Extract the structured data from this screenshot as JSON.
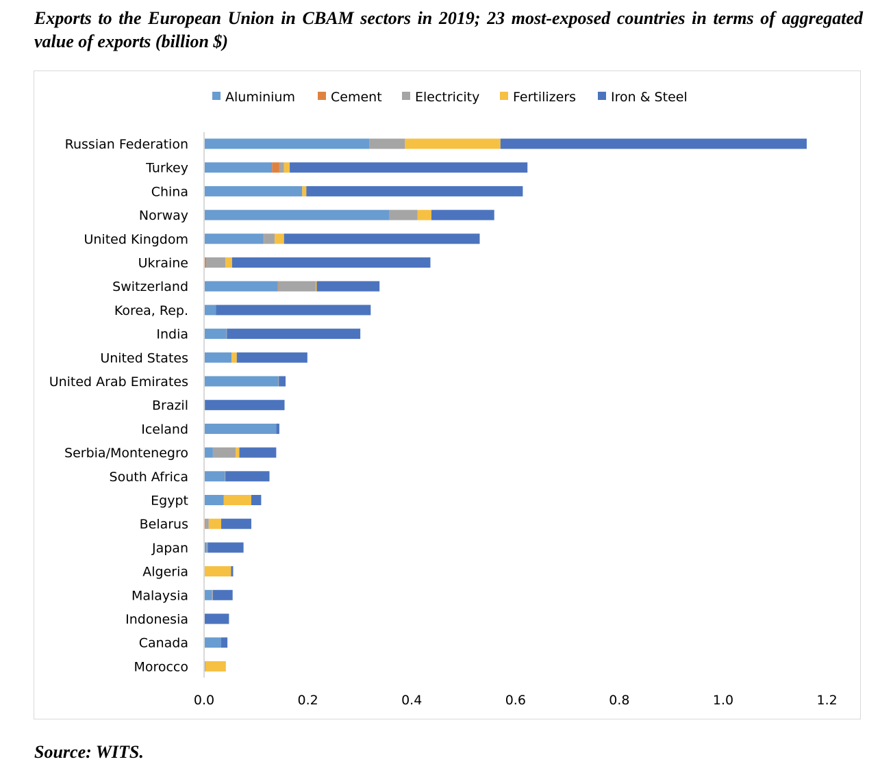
{
  "title": "Exports to the European Union in CBAM sectors in 2019; 23 most-exposed countries in terms of aggregated value of exports (billion $)",
  "source": "Source: WITS.",
  "chart_data": {
    "type": "bar",
    "orientation": "horizontal",
    "stacked": true,
    "title": "",
    "xlabel": "",
    "ylabel": "",
    "xlim": [
      0,
      1.2
    ],
    "xticks": [
      "0.0",
      "0.2",
      "0.4",
      "0.6",
      "0.8",
      "1.0",
      "1.2"
    ],
    "grid": false,
    "legend_position": "top",
    "categories": [
      "Russian Federation",
      "Turkey",
      "China",
      "Norway",
      "United Kingdom",
      "Ukraine",
      "Switzerland",
      "Korea, Rep.",
      "India",
      "United States",
      "United Arab Emirates",
      "Brazil",
      "Iceland",
      "Serbia/Montenegro",
      "South Africa",
      "Egypt",
      "Belarus",
      "Japan",
      "Algeria",
      "Malaysia",
      "Indonesia",
      "Canada",
      "Morocco"
    ],
    "series": [
      {
        "name": "Aluminium",
        "color": "#699CD1",
        "values": [
          0.318,
          0.131,
          0.189,
          0.357,
          0.114,
          0.001,
          0.142,
          0.023,
          0.043,
          0.053,
          0.143,
          0.002,
          0.139,
          0.017,
          0.04,
          0.038,
          0.001,
          0.005,
          0.0,
          0.015,
          0.0,
          0.033,
          0.002
        ]
      },
      {
        "name": "Cement",
        "color": "#E0823F",
        "values": [
          0.0,
          0.014,
          0.0,
          0.0,
          0.001,
          0.003,
          0.001,
          0.0,
          0.0,
          0.0,
          0.0,
          0.0,
          0.0,
          0.0,
          0.0,
          0.0,
          0.002,
          0.0,
          0.0,
          0.0,
          0.0,
          0.0,
          0.0
        ]
      },
      {
        "name": "Electricity",
        "color": "#A5A5A5",
        "values": [
          0.069,
          0.009,
          0.0,
          0.054,
          0.021,
          0.037,
          0.072,
          0.0,
          0.001,
          0.0,
          0.001,
          0.0,
          0.0,
          0.044,
          0.001,
          0.0,
          0.006,
          0.002,
          0.0,
          0.002,
          0.0,
          0.0,
          0.0
        ]
      },
      {
        "name": "Fertilizers",
        "color": "#F6C043",
        "values": [
          0.184,
          0.011,
          0.008,
          0.027,
          0.018,
          0.013,
          0.002,
          0.0,
          0.0,
          0.01,
          0.0,
          0.0,
          0.0,
          0.007,
          0.0,
          0.053,
          0.024,
          0.0,
          0.052,
          0.0,
          0.0,
          0.0,
          0.04
        ]
      },
      {
        "name": "Iron & Steel",
        "color": "#4C74BE",
        "values": [
          0.59,
          0.458,
          0.417,
          0.121,
          0.377,
          0.382,
          0.121,
          0.298,
          0.257,
          0.136,
          0.013,
          0.153,
          0.006,
          0.071,
          0.085,
          0.019,
          0.058,
          0.069,
          0.004,
          0.038,
          0.048,
          0.012,
          0.0
        ]
      }
    ]
  }
}
